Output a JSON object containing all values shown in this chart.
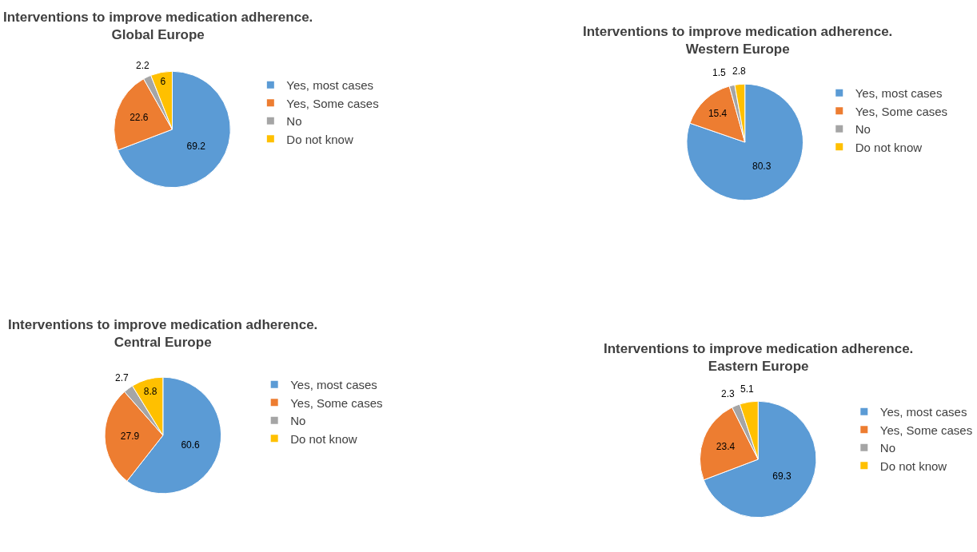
{
  "chart_data": [
    {
      "type": "pie",
      "title": "Interventions to improve medication adherence.",
      "subtitle": "Global Europe",
      "categories": [
        "Yes, most cases",
        "Yes, Some cases",
        "No",
        "Do not know"
      ],
      "values": [
        69.2,
        22.6,
        2.2,
        6
      ],
      "colors": [
        "#5b9bd5",
        "#ed7d31",
        "#a5a5a5",
        "#ffc000"
      ],
      "data_labels": true,
      "legend": "right"
    },
    {
      "type": "pie",
      "title": "Interventions to improve medication adherence.",
      "subtitle": "Western Europe",
      "categories": [
        "Yes, most cases",
        "Yes, Some cases",
        "No",
        "Do not know"
      ],
      "values": [
        80.3,
        15.4,
        1.5,
        2.8
      ],
      "colors": [
        "#5b9bd5",
        "#ed7d31",
        "#a5a5a5",
        "#ffc000"
      ],
      "data_labels": true,
      "legend": "right"
    },
    {
      "type": "pie",
      "title": "Interventions to improve medication adherence.",
      "subtitle": "Central Europe",
      "categories": [
        "Yes, most cases",
        "Yes, Some cases",
        "No",
        "Do not know"
      ],
      "values": [
        60.6,
        27.9,
        2.7,
        8.8
      ],
      "colors": [
        "#5b9bd5",
        "#ed7d31",
        "#a5a5a5",
        "#ffc000"
      ],
      "data_labels": true,
      "legend": "right"
    },
    {
      "type": "pie",
      "title": "Interventions to improve medication adherence.",
      "subtitle": "Eastern Europe",
      "categories": [
        "Yes, most cases",
        "Yes, Some cases",
        "No",
        "Do not know"
      ],
      "values": [
        69.3,
        23.4,
        2.3,
        5.1
      ],
      "colors": [
        "#5b9bd5",
        "#ed7d31",
        "#a5a5a5",
        "#ffc000"
      ],
      "data_labels": true,
      "legend": "right"
    }
  ]
}
